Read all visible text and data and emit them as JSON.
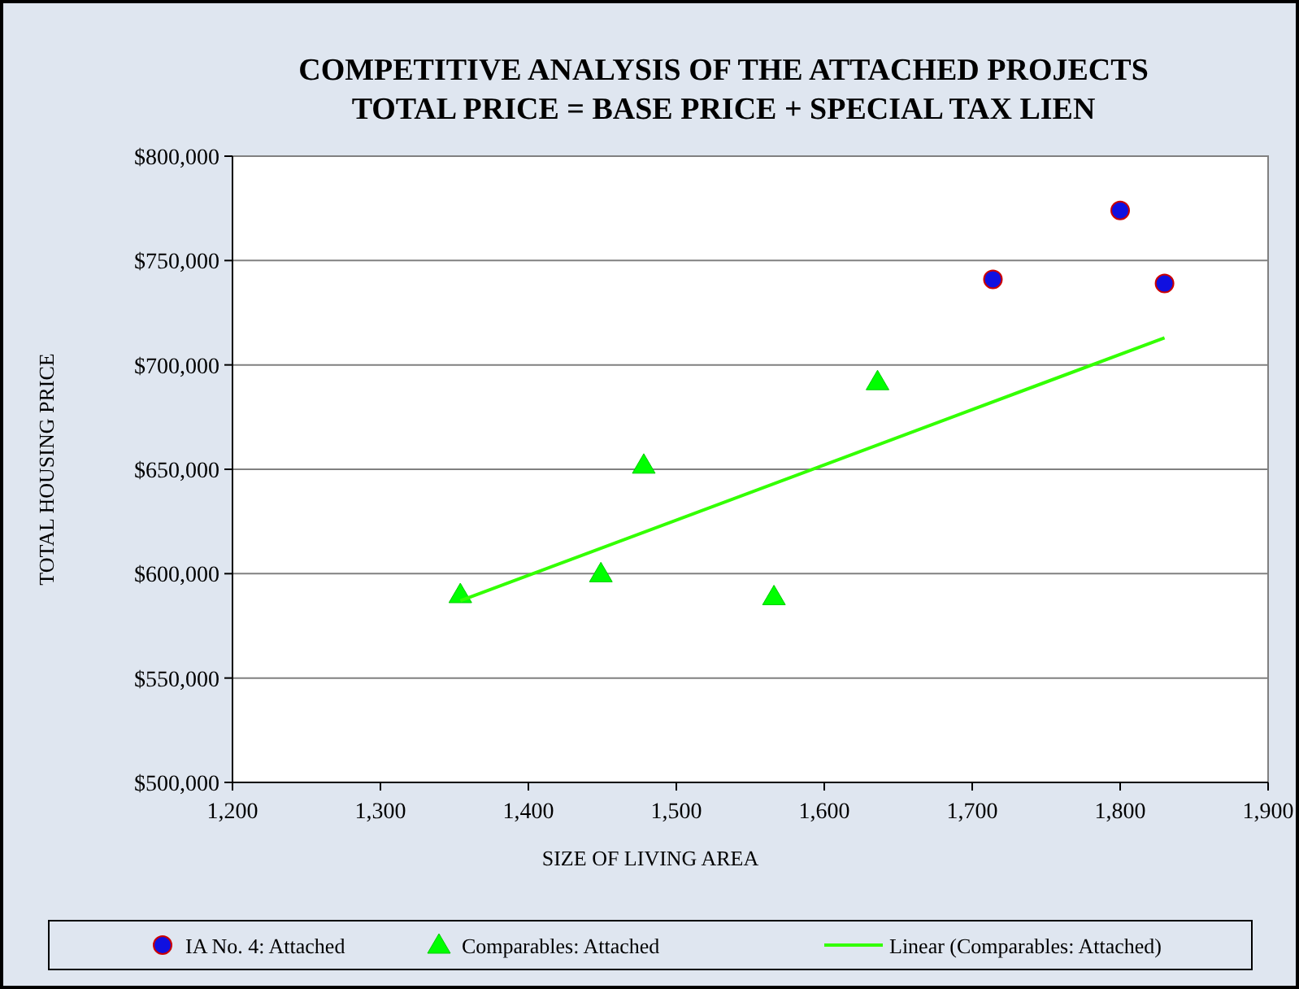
{
  "chart_data": {
    "type": "scatter",
    "title": "COMPETITIVE ANALYSIS OF THE ATTACHED PROJECTS",
    "subtitle": "TOTAL PRICE  = BASE PRICE + SPECIAL TAX LIEN",
    "xlabel": "SIZE OF LIVING AREA",
    "ylabel": "TOTAL HOUSING PRICE",
    "xlim": [
      1200,
      1900
    ],
    "xticks": [
      {
        "value": 1200,
        "label": "1,200"
      },
      {
        "value": 1300,
        "label": "1,300"
      },
      {
        "value": 1400,
        "label": "1,400"
      },
      {
        "value": 1500,
        "label": "1,500"
      },
      {
        "value": 1600,
        "label": "1,600"
      },
      {
        "value": 1700,
        "label": "1,700"
      },
      {
        "value": 1800,
        "label": "1,800"
      },
      {
        "value": 1900,
        "label": "1,900"
      }
    ],
    "ylim": [
      500000,
      800000
    ],
    "yticks": [
      {
        "value": 500000,
        "label": "$500,000"
      },
      {
        "value": 550000,
        "label": "$550,000"
      },
      {
        "value": 600000,
        "label": "$600,000"
      },
      {
        "value": 650000,
        "label": "$650,000"
      },
      {
        "value": 700000,
        "label": "$700,000"
      },
      {
        "value": 750000,
        "label": "$750,000"
      },
      {
        "value": 800000,
        "label": "$800,000"
      }
    ],
    "grid": "y",
    "legend": "bottom",
    "series": [
      {
        "name": "IA No. 4: Attached",
        "marker": "circle",
        "color": "#1010e0",
        "x": [
          1714,
          1800,
          1830
        ],
        "values": [
          741000,
          774000,
          739000
        ]
      },
      {
        "name": "Comparables: Attached",
        "marker": "triangle",
        "color": "#00ff00",
        "x": [
          1354,
          1449,
          1478,
          1566,
          1636
        ],
        "values": [
          590000,
          600000,
          652000,
          589000,
          692000
        ]
      },
      {
        "name": "Linear (Comparables: Attached)",
        "type": "line",
        "marker": "none",
        "line_style": "solid",
        "color": "#33ff00",
        "x": [
          1354,
          1830
        ],
        "values": [
          587000,
          713000
        ]
      }
    ]
  }
}
